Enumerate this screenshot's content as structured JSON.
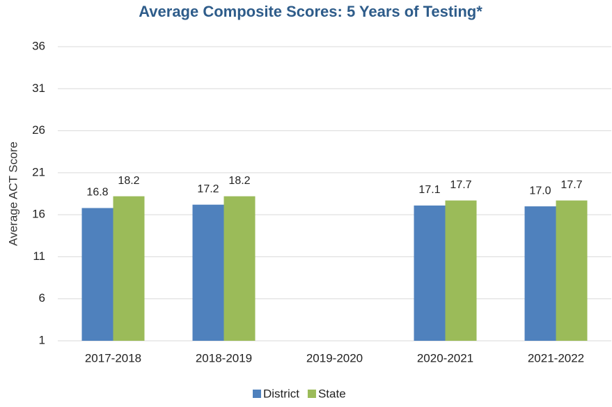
{
  "chart_data": {
    "type": "bar",
    "title": "Average Composite Scores: 5 Years of Testing*",
    "y_label": "Average ACT Score",
    "categories": [
      "2017-2018",
      "2018-2019",
      "2019-2020",
      "2020-2021",
      "2021-2022"
    ],
    "series": [
      {
        "name": "District",
        "color": "#4f81bd",
        "values": [
          16.8,
          17.2,
          null,
          17.1,
          17
        ],
        "value_labels": [
          "16.8",
          "17.2",
          null,
          "17.1",
          "17.0"
        ]
      },
      {
        "name": "State",
        "color": "#9bbb59",
        "values": [
          18.2,
          18.2,
          null,
          17.7,
          17.7
        ],
        "value_labels": [
          "18.2",
          "18.2",
          null,
          "17.7",
          "17.7"
        ]
      }
    ],
    "ylim": [
      1,
      36
    ],
    "yticks": [
      1,
      6,
      11,
      16,
      21,
      26,
      31,
      36
    ],
    "grid": true,
    "legend": "bottom"
  }
}
